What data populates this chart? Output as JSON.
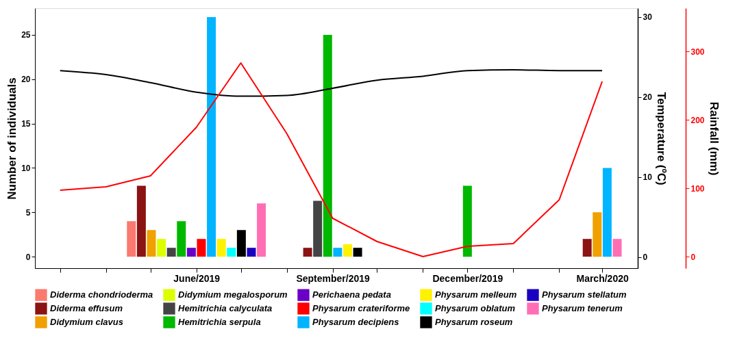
{
  "chart_data": {
    "type": "bar",
    "ylabel": "Number of individuals",
    "y2label": "Temperature (ºC)",
    "y3label": "Rainfall (mm)",
    "xlim": [
      "2019-02-12",
      "2020-03-25"
    ],
    "xticks": [
      {
        "value": "2019-03",
        "label": null
      },
      {
        "value": "2019-04",
        "label": null
      },
      {
        "value": "2019-05",
        "label": null
      },
      {
        "value": "2019-06",
        "label": "June/2019"
      },
      {
        "value": "2019-07",
        "label": null
      },
      {
        "value": "2019-08",
        "label": null
      },
      {
        "value": "2019-09",
        "label": "September/2019"
      },
      {
        "value": "2019-10",
        "label": null
      },
      {
        "value": "2019-11",
        "label": null
      },
      {
        "value": "2019-12",
        "label": "December/2019"
      },
      {
        "value": "2020-01",
        "label": null
      },
      {
        "value": "2020-02",
        "label": null
      },
      {
        "value": "2020-03",
        "label": "March/2020"
      }
    ],
    "ylim": [
      -1.3,
      28
    ],
    "yticks": [
      0,
      5,
      10,
      15,
      20,
      25
    ],
    "y2lim": [
      -1.4,
      31.1
    ],
    "y2ticks": [
      0,
      10,
      20,
      30
    ],
    "y3lim": [
      -17,
      363
    ],
    "y3ticks": [
      0,
      100,
      200,
      300
    ],
    "x": [
      "2019-06",
      "2019-09",
      "2019-12",
      "2020-03"
    ],
    "legend": "bottom",
    "grid": false,
    "series": [
      {
        "name": "Diderma chondrioderma",
        "color": "#fa7a70",
        "values": [
          4,
          null,
          null,
          null
        ]
      },
      {
        "name": "Diderma effusum",
        "color": "#8b1313",
        "values": [
          8,
          1,
          null,
          2
        ]
      },
      {
        "name": "Didymium clavus",
        "color": "#f0a000",
        "values": [
          3,
          null,
          null,
          5
        ]
      },
      {
        "name": "Didymium megalosporum",
        "color": "#dcff00",
        "values": [
          2,
          null,
          null,
          null
        ]
      },
      {
        "name": "Hemitrichia calyculata",
        "color": "#444444",
        "values": [
          1,
          6.3,
          null,
          null
        ]
      },
      {
        "name": "Hemitrichia serpula",
        "color": "#00b800",
        "values": [
          4,
          25,
          8,
          null
        ]
      },
      {
        "name": "Perichaena pedata",
        "color": "#6a00c8",
        "values": [
          1,
          null,
          null,
          null
        ]
      },
      {
        "name": "Physarum crateriforme",
        "color": "#ff0000",
        "values": [
          2,
          null,
          null,
          null
        ]
      },
      {
        "name": "Physarum decipiens",
        "color": "#00b4ff",
        "values": [
          27,
          1,
          null,
          10
        ]
      },
      {
        "name": "Physarum melleum",
        "color": "#fff200",
        "values": [
          2,
          1.4,
          null,
          null
        ]
      },
      {
        "name": "Physarum oblatum",
        "color": "#00ffff",
        "values": [
          1,
          null,
          null,
          null
        ]
      },
      {
        "name": "Physarum roseum",
        "color": "#000000",
        "values": [
          3,
          1,
          null,
          null
        ]
      },
      {
        "name": "Physarum stellatum",
        "color": "#1a00c0",
        "values": [
          1,
          null,
          null,
          null
        ]
      },
      {
        "name": "Physarum tenerum",
        "color": "#ff6eb4",
        "values": [
          6,
          null,
          null,
          2
        ]
      },
      {
        "type": "line",
        "axis": "y2",
        "color": "#000000",
        "x": [
          "2019-03",
          "2019-04",
          "2019-05",
          "2019-06",
          "2019-07",
          "2019-08",
          "2019-09",
          "2019-10",
          "2019-11",
          "2019-12",
          "2020-01",
          "2020-02",
          "2020-03"
        ],
        "values": [
          23.3,
          22.8,
          21.8,
          20.6,
          20.1,
          20.2,
          21.1,
          22.1,
          22.6,
          23.3,
          23.4,
          23.3,
          23.3
        ]
      },
      {
        "type": "line",
        "axis": "y3",
        "color": "#ff0000",
        "x": [
          "2019-03",
          "2019-04",
          "2019-05",
          "2019-06",
          "2019-07",
          "2019-08",
          "2019-09",
          "2019-10",
          "2019-11",
          "2019-12",
          "2020-01",
          "2020-02",
          "2020-03"
        ],
        "values": [
          97,
          102,
          118,
          189,
          283,
          180,
          56,
          22,
          0,
          15,
          19,
          83,
          256
        ]
      }
    ]
  }
}
